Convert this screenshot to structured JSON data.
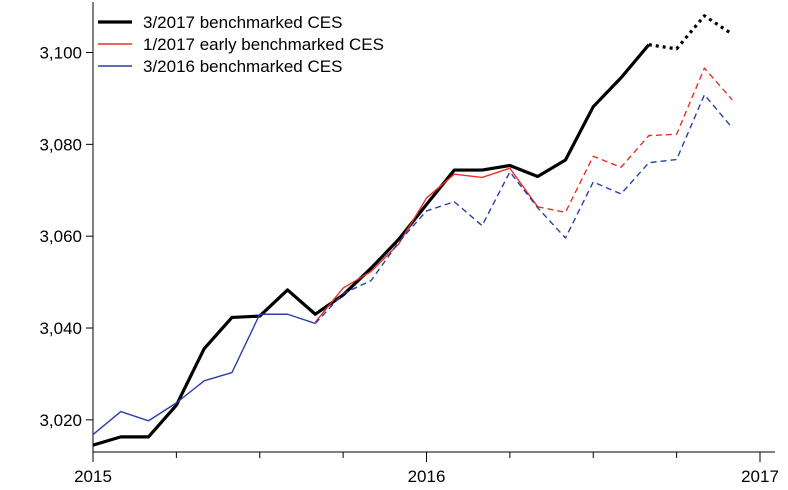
{
  "chart_data": {
    "type": "line",
    "x_ticks": [
      "2015",
      "2016",
      "2017"
    ],
    "y_ticks": [
      "3,020",
      "3,040",
      "3,060",
      "3,080",
      "3,100"
    ],
    "x_range": [
      "2015-01",
      "2017-01"
    ],
    "ylim": [
      3013,
      3111
    ],
    "grid": false,
    "legend_position": "top-left",
    "series": [
      {
        "name": "3/2017 benchmarked CES",
        "color": "#000000",
        "style": "thick; solid through 2016-09, dotted after",
        "x": [
          "2015-01",
          "2015-02",
          "2015-03",
          "2015-04",
          "2015-05",
          "2015-06",
          "2015-07",
          "2015-08",
          "2015-09",
          "2015-10",
          "2015-11",
          "2015-12",
          "2016-01",
          "2016-02",
          "2016-03",
          "2016-04",
          "2016-05",
          "2016-06",
          "2016-07",
          "2016-08",
          "2016-09",
          "2016-10",
          "2016-11",
          "2016-12"
        ],
        "values": [
          3014.5,
          3016.3,
          3016.3,
          3023.2,
          3035.5,
          3042.3,
          3042.6,
          3048.3,
          3043.0,
          3047.2,
          3053.0,
          3059.3,
          3066.9,
          3074.4,
          3074.4,
          3075.4,
          3073.0,
          3076.6,
          3088.2,
          3094.5,
          3101.7,
          3100.8,
          3108.0,
          3104.0
        ],
        "dashed_from": "2016-09"
      },
      {
        "name": "1/2017 early benchmarked CES",
        "color": "#e8302a",
        "style": "thin; solid through 2016-05, dashed after",
        "x": [
          "2015-09",
          "2015-10",
          "2015-11",
          "2015-12",
          "2016-01",
          "2016-02",
          "2016-03",
          "2016-04",
          "2016-05",
          "2016-06",
          "2016-07",
          "2016-08",
          "2016-09",
          "2016-10",
          "2016-11",
          "2016-12"
        ],
        "values": [
          3041.3,
          3048.7,
          3052.3,
          3058.3,
          3068.3,
          3073.5,
          3072.8,
          3074.8,
          3066.4,
          3065.2,
          3077.4,
          3075.0,
          3081.9,
          3082.2,
          3096.6,
          3089.7
        ],
        "dashed_from": "2016-05"
      },
      {
        "name": "3/2016 benchmarked CES",
        "color": "#2b3fa6",
        "style": "thin; solid through 2015-09, dashed after",
        "x": [
          "2015-01",
          "2015-02",
          "2015-03",
          "2015-04",
          "2015-05",
          "2015-06",
          "2015-07",
          "2015-08",
          "2015-09",
          "2015-10",
          "2015-11",
          "2015-12",
          "2016-01",
          "2016-02",
          "2016-03",
          "2016-04",
          "2016-05",
          "2016-06",
          "2016-07",
          "2016-08",
          "2016-09",
          "2016-10",
          "2016-11",
          "2016-12"
        ],
        "values": [
          3016.8,
          3021.8,
          3019.8,
          3023.7,
          3028.5,
          3030.3,
          3043.0,
          3043.0,
          3041.0,
          3047.5,
          3050.3,
          3058.7,
          3065.5,
          3067.5,
          3062.3,
          3074.0,
          3066.2,
          3059.6,
          3071.8,
          3069.2,
          3076.0,
          3076.7,
          3090.8,
          3083.6
        ],
        "dashed_from": "2015-09"
      }
    ]
  }
}
